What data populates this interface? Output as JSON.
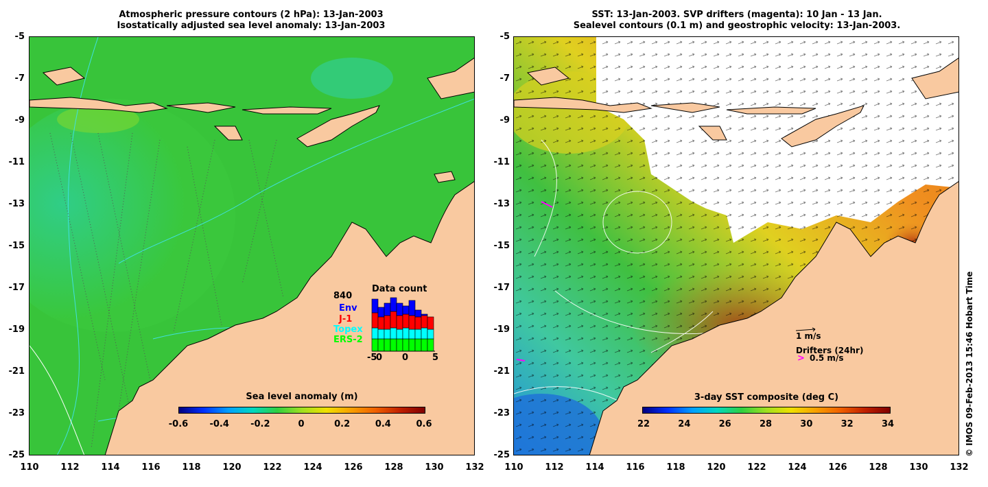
{
  "left": {
    "title_line1": "Atmospheric pressure contours (2 hPa): 13-Jan-2003",
    "title_line2": "Isostatically adjusted sea level anomaly: 13-Jan-2003",
    "colorbar_title": "Sea level anomaly (m)",
    "colorbar_ticks": [
      "-0.6",
      "-0.4",
      "-0.2",
      "0",
      "0.2",
      "0.4",
      "0.6"
    ],
    "data_count": {
      "title": "Data count",
      "total": "840",
      "sources": [
        {
          "label": "Env",
          "color": "#0000ff"
        },
        {
          "label": "J-1",
          "color": "#ff0000"
        },
        {
          "label": "Topex",
          "color": "#00ffff"
        },
        {
          "label": "ERS-2",
          "color": "#00ff00"
        }
      ],
      "x_ticks": [
        "-5",
        "0",
        "0",
        "5"
      ]
    }
  },
  "right": {
    "title_line1": "SST: 13-Jan-2003. SVP drifters (magenta): 10 Jan - 13 Jan.",
    "title_line2": "Sealevel contours (0.1 m) and geostrophic velocity: 13-Jan-2003.",
    "colorbar_title": "3-day SST composite (deg C)",
    "colorbar_ticks": [
      "22",
      "24",
      "26",
      "28",
      "30",
      "32",
      "34"
    ],
    "velocity_scale": "1 m/s",
    "drifters_label": "Drifters (24hr)",
    "drifters_scale": "0.5 m/s"
  },
  "axes": {
    "y_ticks": [
      "-5",
      "-7",
      "-9",
      "-11",
      "-13",
      "-15",
      "-17",
      "-19",
      "-21",
      "-23",
      "-25"
    ],
    "x_ticks": [
      "110",
      "112",
      "114",
      "116",
      "118",
      "120",
      "122",
      "124",
      "126",
      "128",
      "130",
      "132"
    ]
  },
  "copyright": "© IMOS 09-Feb-2013 15:46 Hobart Time",
  "colors": {
    "land": "#f9c9a0",
    "ocean_left": "#3cc83c",
    "ocean_right_cool": "#3cb4f0",
    "ocean_right_warm": "#f0a020"
  }
}
